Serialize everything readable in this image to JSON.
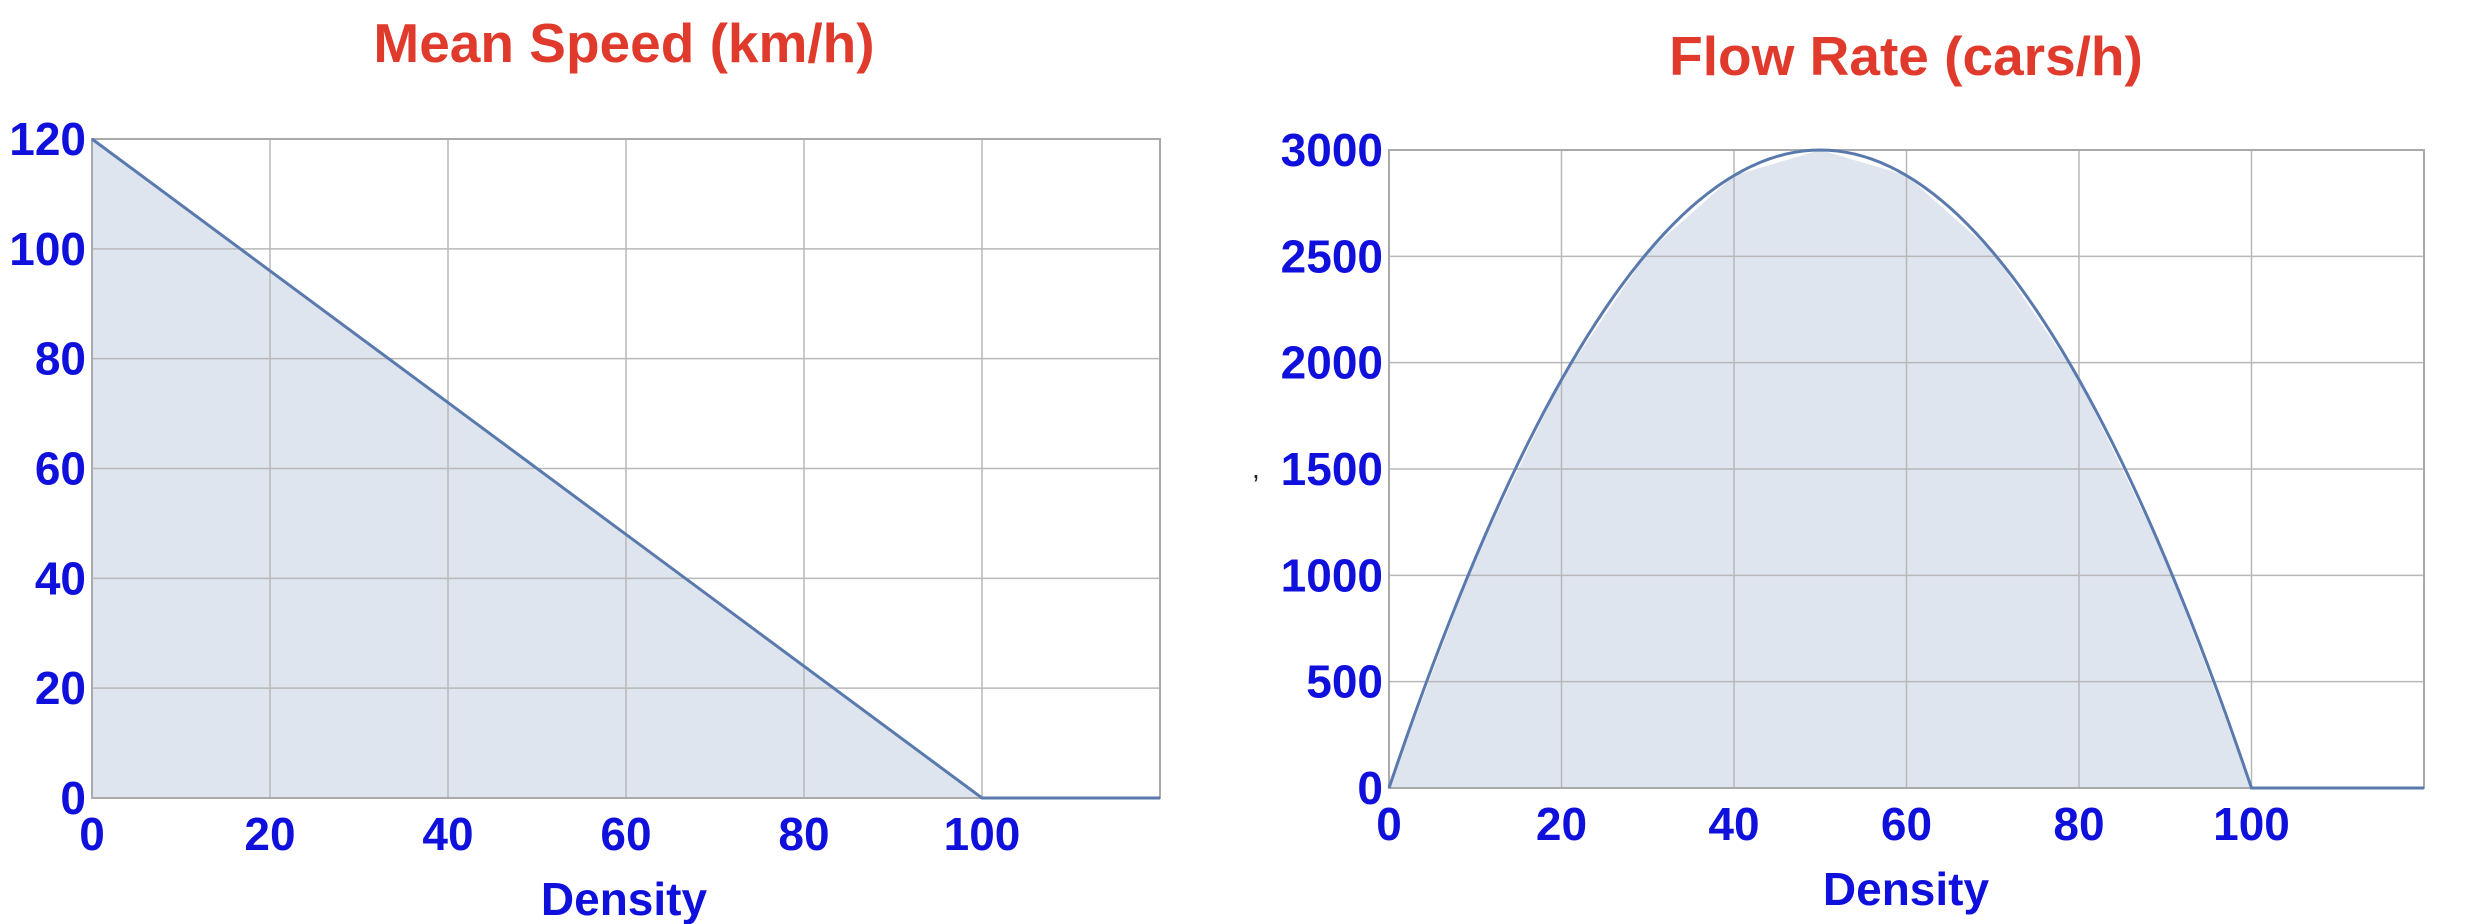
{
  "chart_data": [
    {
      "type": "area",
      "title": "Mean Speed (km/h)",
      "xlabel": "Density",
      "ylabel": "",
      "xlim": [
        0,
        120
      ],
      "ylim": [
        0,
        120
      ],
      "xticks": [
        0,
        20,
        40,
        60,
        80,
        100
      ],
      "yticks": [
        0,
        20,
        40,
        60,
        80,
        100,
        120
      ],
      "grid": true,
      "series": [
        {
          "x": [
            0,
            20,
            40,
            60,
            80,
            100,
            120
          ],
          "y": [
            120,
            96,
            72,
            48,
            24,
            0,
            0
          ]
        }
      ]
    },
    {
      "type": "area",
      "title": "Flow Rate (cars/h)",
      "xlabel": "Density",
      "ylabel": "",
      "xlim": [
        0,
        120
      ],
      "ylim": [
        0,
        3000
      ],
      "xticks": [
        0,
        20,
        40,
        60,
        80,
        100
      ],
      "yticks": [
        0,
        500,
        1000,
        1500,
        2000,
        2500,
        3000
      ],
      "grid": true,
      "series": [
        {
          "x": [
            0,
            10,
            20,
            30,
            40,
            50,
            60,
            70,
            80,
            90,
            100,
            110,
            120
          ],
          "y": [
            0,
            1080,
            1920,
            2520,
            2880,
            3000,
            2880,
            2520,
            1920,
            1080,
            0,
            0,
            0
          ]
        }
      ]
    }
  ]
}
